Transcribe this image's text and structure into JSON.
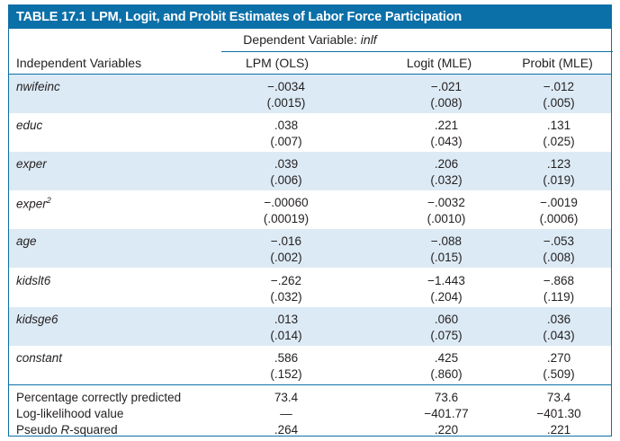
{
  "table": {
    "number": "TABLE 17.1",
    "title": "LPM, Logit, and Probit Estimates of Labor Force Participation",
    "dependent_prefix": "Dependent Variable: ",
    "dependent_var": "inlf",
    "columns": [
      "Independent Variables",
      "LPM (OLS)",
      "Logit (MLE)",
      "Probit (MLE)"
    ],
    "rows": [
      {
        "var": "nwifeinc",
        "sup": "",
        "coef": [
          "−.0034",
          "−.021",
          "−.012"
        ],
        "se": [
          "(.0015)",
          "(.008)",
          "(.005)"
        ]
      },
      {
        "var": "educ",
        "sup": "",
        "coef": [
          ".038",
          ".221",
          ".131"
        ],
        "se": [
          "(.007)",
          "(.043)",
          "(.025)"
        ]
      },
      {
        "var": "exper",
        "sup": "",
        "coef": [
          ".039",
          ".206",
          ".123"
        ],
        "se": [
          "(.006)",
          "(.032)",
          "(.019)"
        ]
      },
      {
        "var": "exper",
        "sup": "2",
        "coef": [
          "−.00060",
          "−.0032",
          "−.0019"
        ],
        "se": [
          "(.00019)",
          "(.0010)",
          "(.0006)"
        ]
      },
      {
        "var": "age",
        "sup": "",
        "coef": [
          "−.016",
          "−.088",
          "−.053"
        ],
        "se": [
          "(.002)",
          "(.015)",
          "(.008)"
        ]
      },
      {
        "var": "kidslt6",
        "sup": "",
        "coef": [
          "−.262",
          "−1.443",
          "−.868"
        ],
        "se": [
          "(.032)",
          "(.204)",
          "(.119)"
        ]
      },
      {
        "var": "kidsge6",
        "sup": "",
        "coef": [
          ".013",
          ".060",
          ".036"
        ],
        "se": [
          "(.014)",
          "(.075)",
          "(.043)"
        ]
      },
      {
        "var": "constant",
        "sup": "",
        "coef": [
          ".586",
          ".425",
          ".270"
        ],
        "se": [
          "(.152)",
          "(.860)",
          "(.509)"
        ]
      }
    ],
    "stats": [
      {
        "label": "Percentage correctly predicted",
        "values": [
          "73.4",
          "73.6",
          "73.4"
        ]
      },
      {
        "label": "Log-likelihood value",
        "values": [
          "—",
          "−401.77",
          "−401.30"
        ]
      },
      {
        "label_prefix": "Pseudo ",
        "label_italic": "R",
        "label_suffix": "-squared",
        "values": [
          ".264",
          ".220",
          ".221"
        ]
      }
    ],
    "colors": {
      "accent": "#0b6fa8",
      "band": "#dceaf5"
    }
  }
}
